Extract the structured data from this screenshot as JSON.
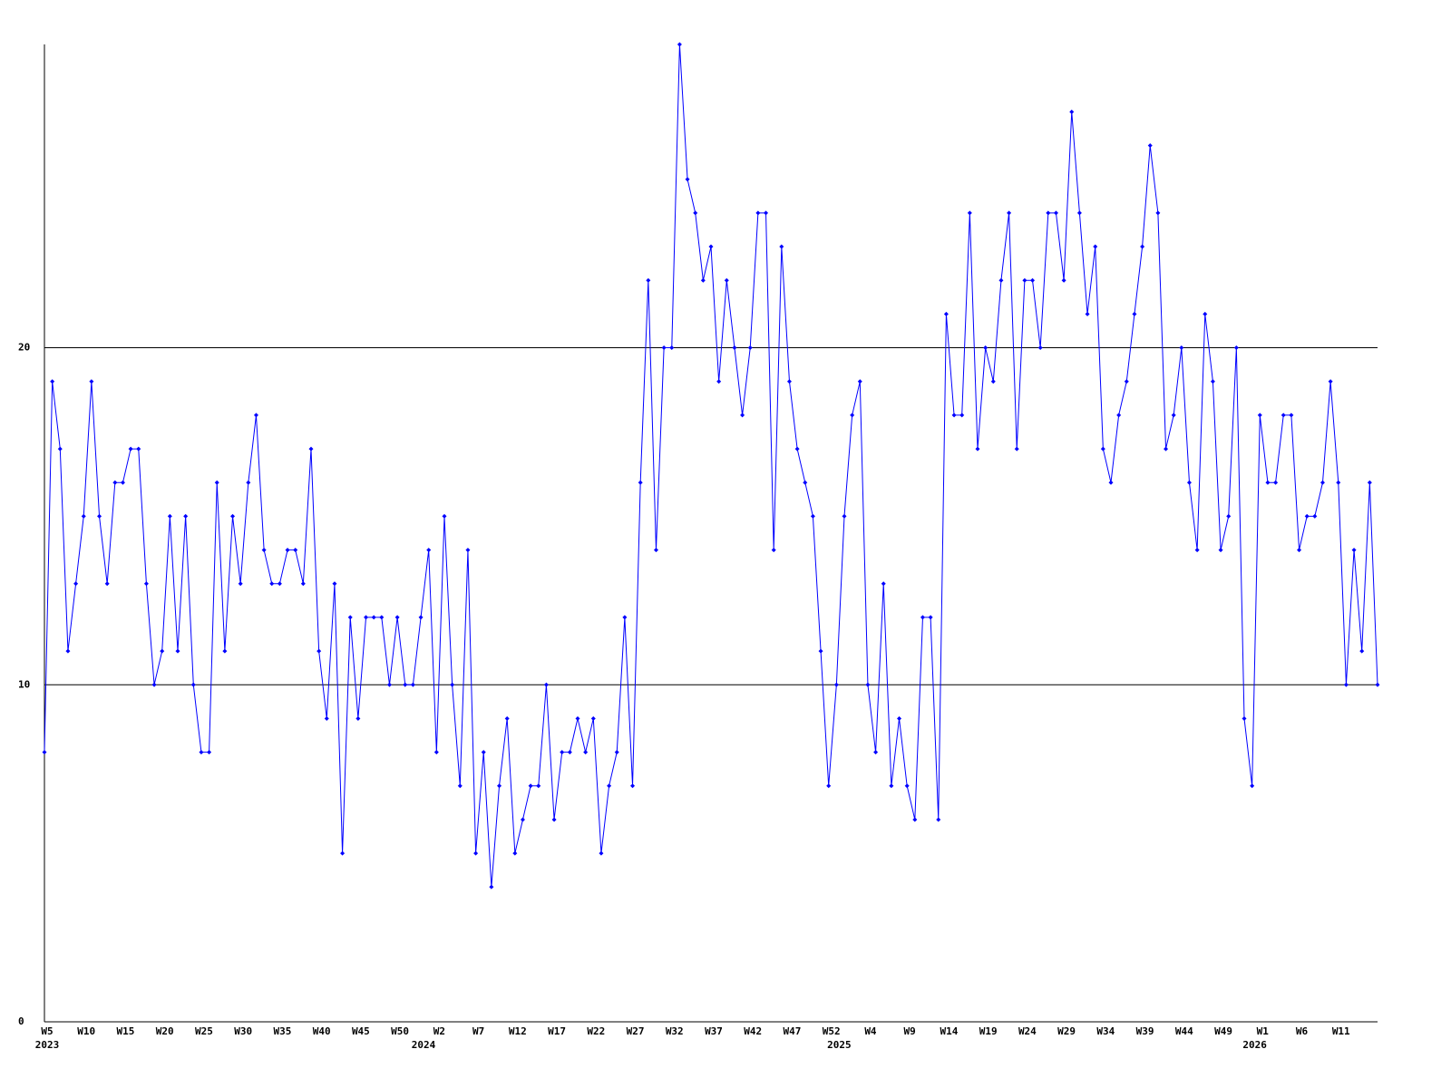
{
  "chart_data": {
    "type": "line",
    "categories": [
      "W5",
      null,
      null,
      null,
      null,
      "W10",
      null,
      null,
      null,
      null,
      "W15",
      null,
      null,
      null,
      null,
      "W20",
      null,
      null,
      null,
      null,
      "W25",
      null,
      null,
      null,
      null,
      "W30",
      null,
      null,
      null,
      null,
      "W35",
      null,
      null,
      null,
      null,
      "W40",
      null,
      null,
      null,
      null,
      "W45",
      null,
      null,
      null,
      null,
      "W50",
      null,
      null,
      null,
      null,
      "W2",
      null,
      null,
      null,
      null,
      "W7",
      null,
      null,
      null,
      null,
      "W12",
      null,
      null,
      null,
      null,
      "W17",
      null,
      null,
      null,
      null,
      "W22",
      null,
      null,
      null,
      null,
      "W27",
      null,
      null,
      null,
      null,
      "W32",
      null,
      null,
      null,
      null,
      "W37",
      null,
      null,
      null,
      null,
      "W42",
      null,
      null,
      null,
      null,
      "W47",
      null,
      null,
      null,
      null,
      "W52",
      null,
      null,
      null,
      null,
      "W4",
      null,
      null,
      null,
      null,
      "W9",
      null,
      null,
      null,
      null,
      "W14",
      null,
      null,
      null,
      null,
      "W19",
      null,
      null,
      null,
      null,
      "W24",
      null,
      null,
      null,
      null,
      "W29",
      null,
      null,
      null,
      null,
      "W34",
      null,
      null,
      null,
      null,
      "W39",
      null,
      null,
      null,
      null,
      "W44",
      null,
      null,
      null,
      null,
      "W49",
      null,
      null,
      null,
      null,
      "W1",
      null,
      null,
      null,
      null,
      "W6",
      null,
      null,
      null,
      null,
      "W11",
      null,
      null,
      null,
      null,
      null
    ],
    "years": [
      "2023",
      null,
      null,
      null,
      null,
      null,
      null,
      null,
      null,
      null,
      null,
      null,
      null,
      null,
      null,
      null,
      null,
      null,
      null,
      null,
      null,
      null,
      null,
      null,
      null,
      null,
      null,
      null,
      null,
      null,
      null,
      null,
      null,
      null,
      null,
      null,
      null,
      null,
      null,
      null,
      null,
      null,
      null,
      null,
      null,
      null,
      null,
      null,
      "2024",
      null,
      null,
      null,
      null,
      null,
      null,
      null,
      null,
      null,
      null,
      null,
      null,
      null,
      null,
      null,
      null,
      null,
      null,
      null,
      null,
      null,
      null,
      null,
      null,
      null,
      null,
      null,
      null,
      null,
      null,
      null,
      null,
      null,
      null,
      null,
      null,
      null,
      null,
      null,
      null,
      null,
      null,
      null,
      null,
      null,
      null,
      null,
      null,
      null,
      null,
      null,
      null,
      "2025",
      null,
      null,
      null,
      null,
      null,
      null,
      null,
      null,
      null,
      null,
      null,
      null,
      null,
      null,
      null,
      null,
      null,
      null,
      null,
      null,
      null,
      null,
      null,
      null,
      null,
      null,
      null,
      null,
      null,
      null,
      null,
      null,
      null,
      null,
      null,
      null,
      null,
      null,
      null,
      null,
      null,
      null,
      null,
      null,
      null,
      null,
      null,
      null,
      null,
      null,
      null,
      null,
      "2026",
      null,
      null,
      null,
      null,
      null,
      null,
      null,
      null,
      null,
      null,
      null,
      null,
      null,
      null,
      null,
      null
    ],
    "values": [
      8,
      19,
      17,
      11,
      13,
      15,
      19,
      15,
      13,
      16,
      16,
      17,
      17,
      13,
      10,
      11,
      15,
      11,
      15,
      10,
      8,
      8,
      16,
      11,
      15,
      13,
      16,
      18,
      14,
      13,
      13,
      14,
      14,
      13,
      17,
      11,
      9,
      13,
      5,
      12,
      9,
      12,
      12,
      12,
      10,
      12,
      10,
      10,
      12,
      14,
      8,
      15,
      10,
      7,
      14,
      5,
      8,
      4,
      7,
      9,
      5,
      6,
      7,
      7,
      10,
      6,
      8,
      8,
      9,
      8,
      9,
      5,
      7,
      8,
      12,
      7,
      16,
      22,
      14,
      20,
      20,
      29,
      25,
      24,
      22,
      23,
      19,
      22,
      20,
      18,
      20,
      24,
      24,
      14,
      23,
      19,
      17,
      16,
      15,
      11,
      7,
      10,
      15,
      18,
      19,
      10,
      8,
      13,
      7,
      9,
      7,
      6,
      12,
      12,
      6,
      21,
      18,
      18,
      24,
      17,
      20,
      19,
      22,
      24,
      17,
      22,
      22,
      20,
      24,
      24,
      22,
      27,
      24,
      21,
      23,
      17,
      16,
      18,
      19,
      21,
      23,
      26,
      24,
      17,
      18,
      20,
      16,
      14,
      21,
      19,
      14,
      15,
      20,
      9,
      7,
      18,
      16,
      16,
      18,
      18,
      14,
      15,
      15,
      16,
      19,
      16,
      10,
      14,
      11,
      16,
      10
    ],
    "color": "#0000ff",
    "ylim": [
      0,
      29
    ],
    "yticks": [
      0,
      10,
      20
    ],
    "grid": true
  }
}
